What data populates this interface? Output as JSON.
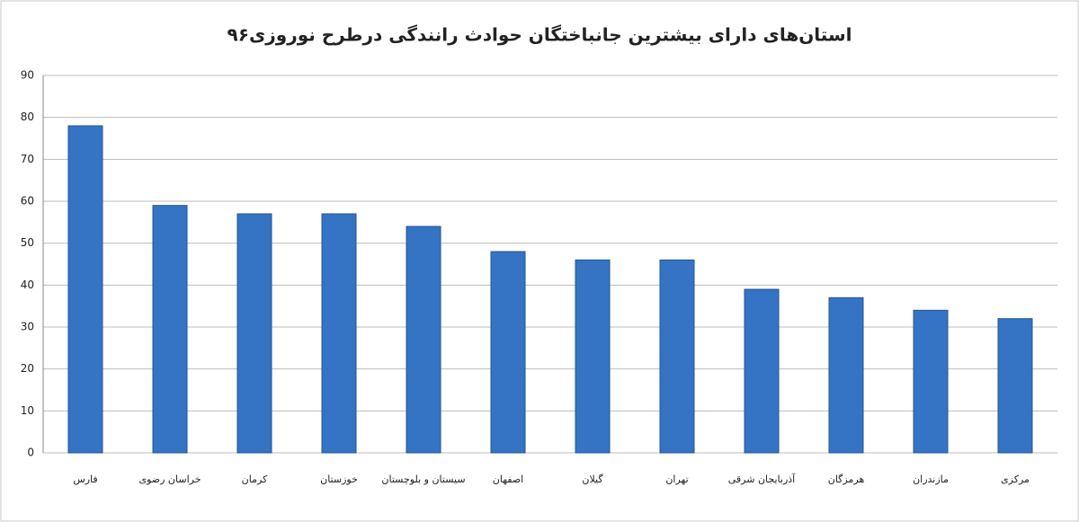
{
  "chart_data": {
    "type": "bar",
    "title": "استان‌های دارای بیشترین جانباختگان حوادث رانندگی درطرح نوروزی۹۶",
    "categories": [
      "فارس",
      "خراسان رضوی",
      "کرمان",
      "خوزستان",
      "سیستان و بلوچستان",
      "اصفهان",
      "گیلان",
      "تهران",
      "آذربایجان شرقی",
      "هرمزگان",
      "مازندران",
      "مرکزی"
    ],
    "values": [
      78,
      59,
      57,
      57,
      54,
      48,
      46,
      46,
      39,
      37,
      34,
      32
    ],
    "color": "#3574c4",
    "ylim": [
      0,
      90
    ],
    "yticks": [
      0,
      10,
      20,
      30,
      40,
      50,
      60,
      70,
      80,
      90
    ],
    "grid": true
  }
}
